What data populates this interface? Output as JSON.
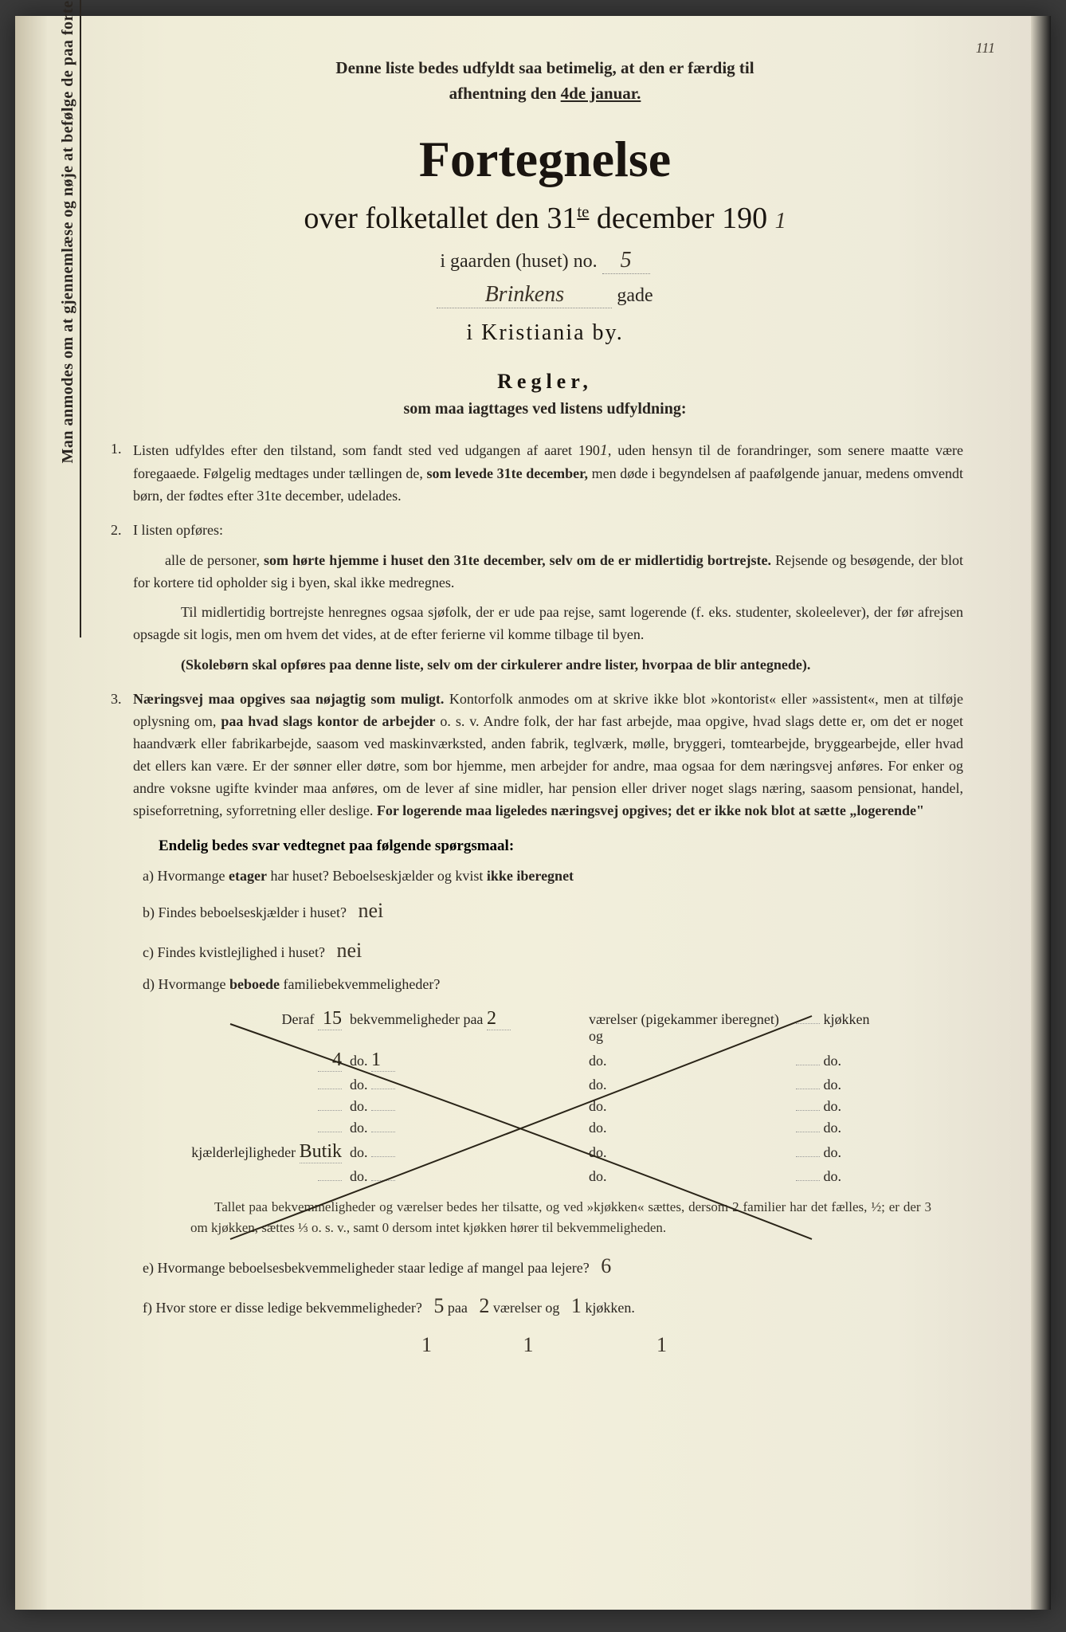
{
  "page_number": "111",
  "vertical_note": "Man anmodes om at gjennemlæse og nøje at befølge de paa fortegnelsen trykte overskrifter og anvisninger.",
  "top_note_1": "Denne liste bedes udfyldt saa betimelig, at den er færdig til",
  "top_note_2": "afhentning den ",
  "top_note_date": "4de januar.",
  "main_title": "Fortegnelse",
  "subtitle_pre": "over folketallet den 31",
  "subtitle_sup": "te",
  "subtitle_post": " december 190",
  "year_hw": "1",
  "gaard_label": "i gaarden (huset) no.",
  "house_no_hw": "5",
  "street_hw": "Brinkens",
  "gade_label": "gade",
  "city_line": "i Kristiania by.",
  "regler_title": "Regler,",
  "regler_sub": "som maa iagttages ved listens udfyldning:",
  "rule1_num": "1.",
  "rule1_text_a": "Listen udfyldes efter den tilstand, som fandt sted ved udgangen af aaret 190",
  "rule1_year_hw": "1",
  "rule1_text_b": ", uden hensyn til de forandringer, som senere maatte være foregaaede. Følgelig medtages under tællingen de, ",
  "rule1_bold1": "som levede 31te december,",
  "rule1_text_c": " men døde i begyndelsen af paafølgende januar, medens omvendt børn, der fødtes efter 31te december, udelades.",
  "rule2_num": "2.",
  "rule2_text_a": "I listen opføres:",
  "rule2_text_b": "alle de personer, ",
  "rule2_bold1": "som hørte hjemme i huset den 31te december, selv om de er midlertidig bortrejste.",
  "rule2_text_c": " Rejsende og besøgende, der blot for kortere tid opholder sig i byen, skal ikke medregnes.",
  "rule2_text_d": "Til midlertidig bortrejste henregnes ogsaa sjøfolk, der er ude paa rejse, samt logerende (f. eks. studenter, skoleelever), der før afrejsen opsagde sit logis, men om hvem det vides, at de efter ferierne vil komme tilbage til byen.",
  "rule2_bold2": "(Skolebørn skal opføres paa denne liste, selv om der cirkulerer andre lister, hvorpaa de blir antegnede).",
  "rule3_num": "3.",
  "rule3_bold1": "Næringsvej maa opgives saa nøjagtig som muligt.",
  "rule3_text_a": " Kontorfolk anmodes om at skrive ikke blot »kontorist« eller »assistent«, men at tilføje oplysning om, ",
  "rule3_bold2": "paa hvad slags kontor de arbejder",
  "rule3_text_b": " o. s. v. Andre folk, der har fast arbejde, maa opgive, hvad slags dette er, om det er noget haandværk eller fabrikarbejde, saasom ved maskinværksted, anden fabrik, teglværk, mølle, bryggeri, tomtearbejde, bryggearbejde, eller hvad det ellers kan være. Er der sønner eller døtre, som bor hjemme, men arbejder for andre, maa ogsaa for dem næringsvej anføres. For enker og andre voksne ugifte kvinder maa anføres, om de lever af sine midler, har pension eller driver noget slags næring, saasom pensionat, handel, spiseforretning, syforretning eller deslige. ",
  "rule3_bold3": "For logerende maa ligeledes næringsvej opgives; det er ikke nok blot at sætte „logerende\"",
  "endelig": "Endelig bedes svar vedtegnet paa følgende spørgsmaal:",
  "qa_label": "a)",
  "qa_text": "Hvormange ",
  "qa_bold": "etager",
  "qa_text2": " har huset? Beboelseskjælder og kvist ",
  "qa_bold2": "ikke iberegnet",
  "qb_label": "b)",
  "qb_text": "Findes beboelseskjælder i huset?",
  "qb_ans": "nei",
  "qc_label": "c)",
  "qc_text": "Findes kvistlejlighed i huset?",
  "qc_ans": "nei",
  "qd_label": "d)",
  "qd_text": "Hvormange ",
  "qd_bold": "beboede",
  "qd_text2": " familiebekvemmeligheder?",
  "table": {
    "rows": [
      {
        "c1_pre": "Deraf",
        "c1_hw": "15",
        "c2": " bekvemmeligheder paa ",
        "c2_hw": "2",
        "c3": " værelser (pigekammer iberegnet) og",
        "c4_hw": "",
        "c4": "kjøkken"
      },
      {
        "c1_pre": "",
        "c1_hw": "4",
        "c2": "do.",
        "c2_hw": "1",
        "c3": "do.",
        "c4_hw": "",
        "c4": "do."
      },
      {
        "c1_pre": "",
        "c1_hw": "",
        "c2": "do.",
        "c2_hw": "",
        "c3": "do.",
        "c4_hw": "",
        "c4": "do."
      },
      {
        "c1_pre": "",
        "c1_hw": "",
        "c2": "do.",
        "c2_hw": "",
        "c3": "do.",
        "c4_hw": "",
        "c4": "do."
      },
      {
        "c1_pre": "",
        "c1_hw": "",
        "c2": "do.",
        "c2_hw": "",
        "c3": "do.",
        "c4_hw": "",
        "c4": "do."
      },
      {
        "c1_pre": "kjælderlejligheder",
        "c1_hw": "Butik",
        "c2": "do.",
        "c2_hw": "",
        "c3": "do.",
        "c4_hw": "",
        "c4": "do."
      },
      {
        "c1_pre": "",
        "c1_hw": "",
        "c2": "do.",
        "c2_hw": "",
        "c3": "do.",
        "c4_hw": "",
        "c4": "do."
      }
    ]
  },
  "para_after": "Tallet paa bekvemmeligheder og værelser bedes her tilsatte, og ved »kjøkken« sættes, dersom 2 familier har det fælles, ½; er der 3 om kjøkken, sættes ⅓ o. s. v., samt 0 dersom intet kjøkken hører til bekvemmeligheden.",
  "qe_label": "e)",
  "qe_text": "Hvormange beboelsesbekvemmeligheder staar ledige af mangel paa lejere?",
  "qe_ans": "6",
  "qf_label": "f)",
  "qf_text": "Hvor store er disse ledige bekvemmeligheder?",
  "qf_ans1": "5",
  "qf_mid1": "paa",
  "qf_ans2": "2",
  "qf_mid2": "værelser og",
  "qf_ans3": "1",
  "qf_end": "kjøkken.",
  "qf_line2_1": "1",
  "qf_line2_2": "1",
  "qf_line2_3": "1",
  "colors": {
    "paper": "#f0edd8",
    "text": "#2a2520",
    "hw": "#3a3228"
  }
}
